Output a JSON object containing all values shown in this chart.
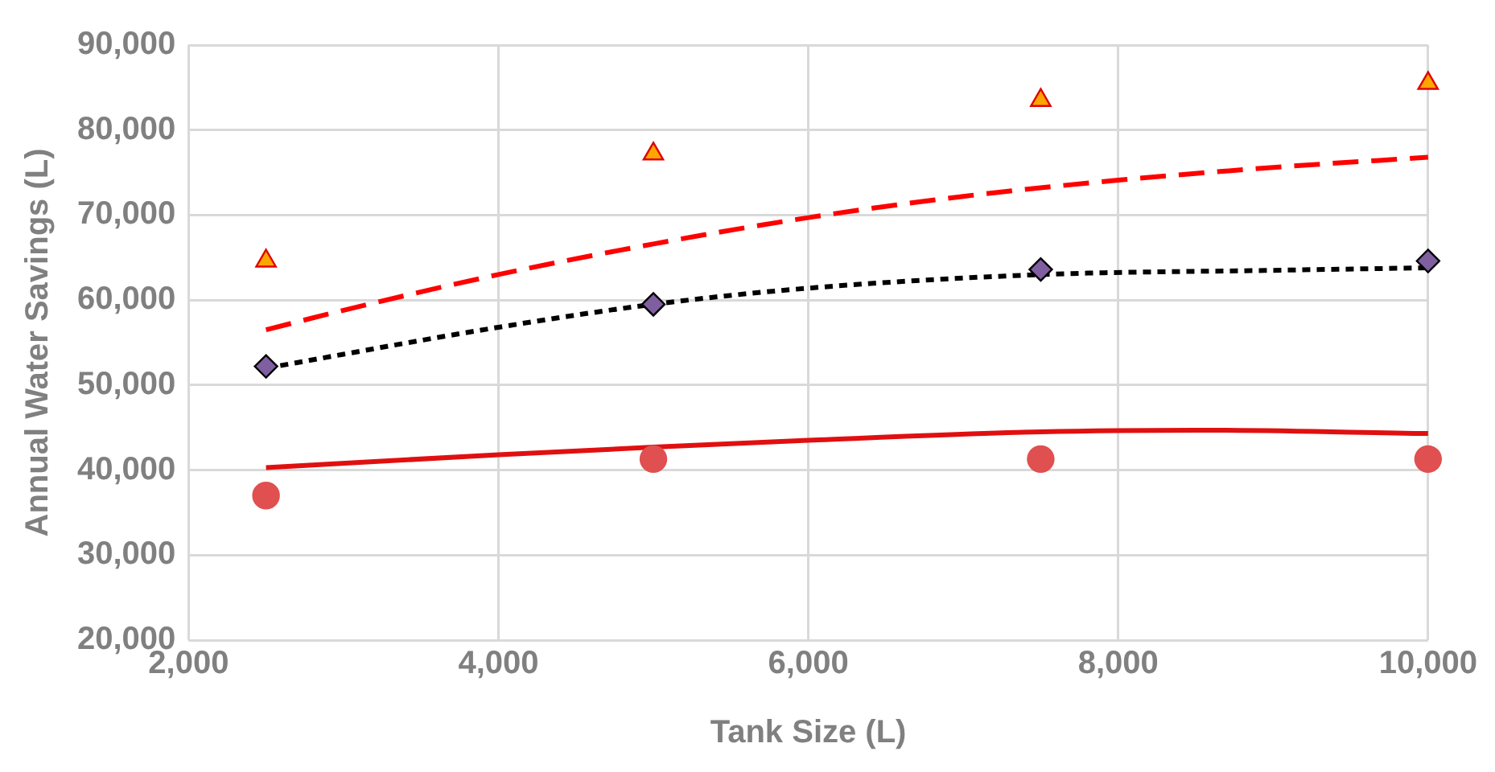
{
  "chart_data": {
    "type": "scatter",
    "xlabel": "Tank Size (L)",
    "ylabel": "Annual Water Savings (L)",
    "xlim": [
      2000,
      10000
    ],
    "xticks": [
      {
        "value": 2000,
        "label": "2,000"
      },
      {
        "value": 4000,
        "label": "4,000"
      },
      {
        "value": 6000,
        "label": "6,000"
      },
      {
        "value": 8000,
        "label": "8,000"
      },
      {
        "value": 10000,
        "label": "10,000"
      }
    ],
    "ylim": [
      20000,
      90000
    ],
    "yticks": [
      {
        "value": 20000,
        "label": "20,000"
      },
      {
        "value": 30000,
        "label": "30,000"
      },
      {
        "value": 40000,
        "label": "40,000"
      },
      {
        "value": 50000,
        "label": "50,000"
      },
      {
        "value": 60000,
        "label": "60,000"
      },
      {
        "value": 70000,
        "label": "70,000"
      },
      {
        "value": 80000,
        "label": "80,000"
      },
      {
        "value": 90000,
        "label": "90,000"
      }
    ],
    "grid": true,
    "legend": false,
    "x": [
      2500,
      5000,
      7500,
      10000
    ],
    "series": [
      {
        "type": "scatter",
        "marker": "triangle",
        "color": "#ffa500",
        "values": [
          64600,
          77200,
          83500,
          85500
        ]
      },
      {
        "type": "scatter",
        "marker": "diamond",
        "color": "#7f5fa0",
        "values": [
          52200,
          59500,
          63600,
          64600
        ]
      },
      {
        "type": "scatter",
        "marker": "circle",
        "color": "#e05050",
        "values": [
          37000,
          41300,
          41300,
          41300
        ]
      },
      {
        "type": "line",
        "line_style": "dashed",
        "color": "#ff0000",
        "x": [
          2500,
          3000,
          4000,
          5000,
          6000,
          7000,
          8000,
          9000,
          10000
        ],
        "values": [
          56500,
          58800,
          63000,
          66600,
          69700,
          72200,
          74100,
          75600,
          76800
        ]
      },
      {
        "type": "line",
        "line_style": "dotted",
        "color": "#000000",
        "x": [
          2500,
          4000,
          5000,
          6000,
          7500,
          9000,
          10000
        ],
        "values": [
          52000,
          56800,
          59500,
          61400,
          63000,
          63500,
          63800
        ]
      },
      {
        "type": "line",
        "line_style": "solid",
        "color": "#e01010",
        "x": [
          2500,
          4000,
          5000,
          6000,
          7500,
          8500,
          10000
        ],
        "values": [
          40300,
          41800,
          42700,
          43500,
          44500,
          44700,
          44300
        ]
      }
    ]
  }
}
